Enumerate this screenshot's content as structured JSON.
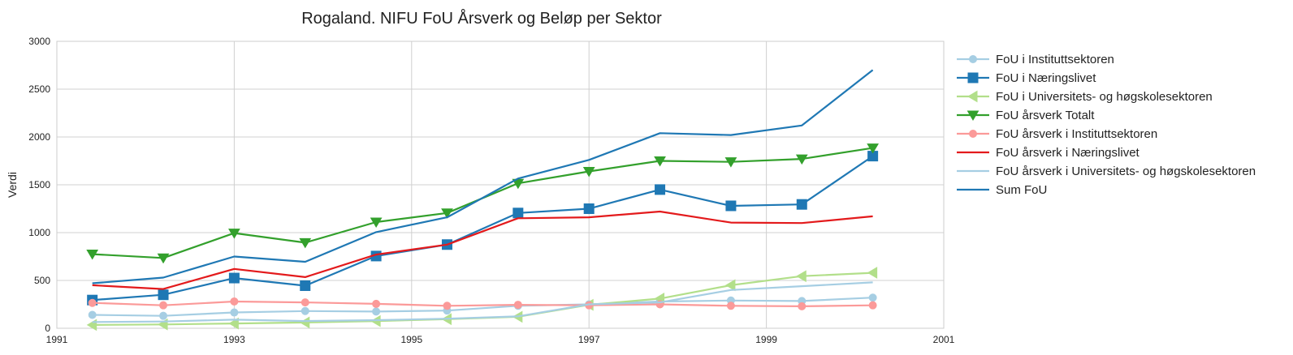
{
  "chart_data": {
    "type": "line",
    "title": "Rogaland. NIFU FoU Årsverk og Beløp per Sektor",
    "xlabel": "",
    "ylabel": "Verdi",
    "xlim": [
      1991,
      2001
    ],
    "ylim": [
      0,
      3000
    ],
    "xticks": [
      "1991",
      "1993",
      "1995",
      "1997",
      "1999",
      "2001"
    ],
    "yticks": [
      "0",
      "500",
      "1000",
      "1500",
      "2000",
      "2500",
      "3000"
    ],
    "grid": true,
    "legend_position": "outside-right",
    "x": [
      1991.4,
      1992.2,
      1993.0,
      1993.8,
      1994.6,
      1995.4,
      1996.2,
      1997.0,
      1997.8,
      1998.6,
      1999.4,
      2000.2
    ],
    "series": [
      {
        "name": "FoU i Instituttsektoren",
        "color": "#a6cee3",
        "marker": "circle",
        "values": [
          140,
          130,
          165,
          180,
          175,
          185,
          235,
          250,
          280,
          290,
          285,
          320
        ]
      },
      {
        "name": "FoU i Næringslivet",
        "color": "#1f78b4",
        "marker": "square",
        "values": [
          295,
          350,
          525,
          445,
          755,
          875,
          1205,
          1250,
          1450,
          1280,
          1295,
          1800
        ]
      },
      {
        "name": "FoU i Universitets- og høgskolesektoren",
        "color": "#b2df8a",
        "marker": "triangle-left",
        "values": [
          35,
          40,
          50,
          60,
          75,
          95,
          120,
          245,
          310,
          450,
          545,
          580
        ]
      },
      {
        "name": "FoU årsverk Totalt",
        "color": "#33a02c",
        "marker": "triangle-down",
        "values": [
          775,
          735,
          995,
          895,
          1110,
          1205,
          1515,
          1640,
          1750,
          1740,
          1770,
          1885
        ]
      },
      {
        "name": "FoU årsverk i Instituttsektoren",
        "color": "#fb9a99",
        "marker": "circle",
        "values": [
          265,
          240,
          280,
          270,
          255,
          235,
          245,
          240,
          250,
          235,
          230,
          240
        ]
      },
      {
        "name": "FoU årsverk i Næringslivet",
        "color": "#e31a1c",
        "marker": "none",
        "values": [
          450,
          410,
          620,
          535,
          770,
          875,
          1150,
          1160,
          1220,
          1105,
          1100,
          1170
        ]
      },
      {
        "name": "FoU årsverk i Universitets- og høgskolesektoren",
        "color": "#a6cee3",
        "marker": "none",
        "values": [
          65,
          70,
          90,
          75,
          85,
          100,
          125,
          250,
          270,
          400,
          440,
          480
        ]
      },
      {
        "name": "Sum FoU",
        "color": "#1f78b4",
        "marker": "none",
        "values": [
          470,
          530,
          750,
          695,
          1005,
          1160,
          1565,
          1760,
          2040,
          2020,
          2120,
          2700
        ]
      }
    ]
  }
}
